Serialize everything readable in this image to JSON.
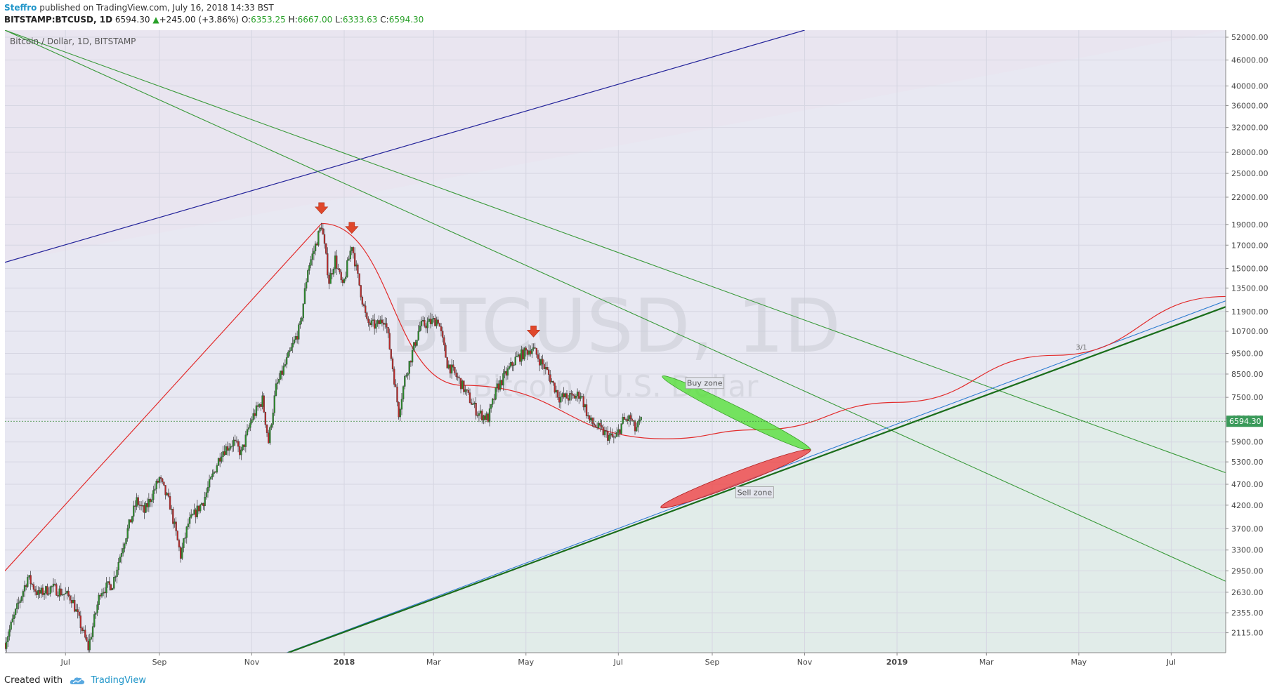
{
  "header": {
    "author": "Steffro",
    "published": "published on TradingView.com, July 16, 2018 14:33 BST",
    "symbol": "BITSTAMP:BTCUSD, 1D",
    "last": "6594.30",
    "change": "+245.00 (+3.86%)",
    "o_label": "O:",
    "o_value": "6353.25",
    "h_label": "H:",
    "h_value": "6667.00",
    "l_label": "L:",
    "l_value": "6333.63",
    "c_label": "C:",
    "c_value": "6594.30"
  },
  "footer": {
    "created": "Created with",
    "brand": "TradingView"
  },
  "chart_data": {
    "type": "candlestick",
    "legend": "Bitcoin / Dollar, 1D, BITSTAMP",
    "watermark_symbol": "BTCUSD, 1D",
    "watermark_name": "Bitcoin / U.S. Dollar",
    "y_scale": "log",
    "ylim": [
      1900,
      54000
    ],
    "xlim": [
      "2017-05-22",
      "2019-08-06"
    ],
    "y_ticks": [
      "52000.00",
      "46000.00",
      "40000.00",
      "36000.00",
      "32000.00",
      "28000.00",
      "25000.00",
      "22000.00",
      "19000.00",
      "17000.00",
      "15000.00",
      "13500.00",
      "11900.00",
      "10700.00",
      "9500.00",
      "8500.00",
      "7500.00",
      "6700.00",
      "5900.00",
      "5300.00",
      "4700.00",
      "4200.00",
      "3700.00",
      "3300.00",
      "2950.00",
      "2630.00",
      "2355.00",
      "2115.00"
    ],
    "x_ticks": [
      {
        "label": "Jul",
        "date": "2017-07-01"
      },
      {
        "label": "Sep",
        "date": "2017-09-01"
      },
      {
        "label": "Nov",
        "date": "2017-11-01"
      },
      {
        "label": "2018",
        "date": "2018-01-01"
      },
      {
        "label": "Mar",
        "date": "2018-03-01"
      },
      {
        "label": "May",
        "date": "2018-05-01"
      },
      {
        "label": "Jul",
        "date": "2018-07-01"
      },
      {
        "label": "Sep",
        "date": "2018-09-01"
      },
      {
        "label": "Nov",
        "date": "2018-11-01"
      },
      {
        "label": "2019",
        "date": "2019-01-01"
      },
      {
        "label": "Mar",
        "date": "2019-03-01"
      },
      {
        "label": "May",
        "date": "2019-05-01"
      },
      {
        "label": "Jul",
        "date": "2019-07-01"
      }
    ],
    "last_price": "6594.30",
    "price_path": [
      [
        "2017-05-22",
        2000
      ],
      [
        "2017-06-06",
        2850
      ],
      [
        "2017-06-13",
        2600
      ],
      [
        "2017-06-22",
        2700
      ],
      [
        "2017-07-05",
        2550
      ],
      [
        "2017-07-16",
        1950
      ],
      [
        "2017-07-24",
        2650
      ],
      [
        "2017-08-01",
        2750
      ],
      [
        "2017-08-08",
        3400
      ],
      [
        "2017-08-17",
        4300
      ],
      [
        "2017-08-22",
        4050
      ],
      [
        "2017-09-01",
        4850
      ],
      [
        "2017-09-08",
        4200
      ],
      [
        "2017-09-15",
        3200
      ],
      [
        "2017-09-20",
        3800
      ],
      [
        "2017-09-30",
        4300
      ],
      [
        "2017-10-12",
        5600
      ],
      [
        "2017-10-20",
        5900
      ],
      [
        "2017-10-25",
        5550
      ],
      [
        "2017-11-01",
        6700
      ],
      [
        "2017-11-08",
        7400
      ],
      [
        "2017-11-12",
        5900
      ],
      [
        "2017-11-17",
        7900
      ],
      [
        "2017-11-26",
        9500
      ],
      [
        "2017-12-03",
        11000
      ],
      [
        "2017-12-08",
        15000
      ],
      [
        "2017-12-12",
        16500
      ],
      [
        "2017-12-17",
        19000
      ],
      [
        "2017-12-22",
        14000
      ],
      [
        "2017-12-26",
        15800
      ],
      [
        "2017-12-31",
        13500
      ],
      [
        "2018-01-06",
        17100
      ],
      [
        "2018-01-10",
        14300
      ],
      [
        "2018-01-16",
        11200
      ],
      [
        "2018-01-22",
        11000
      ],
      [
        "2018-01-28",
        11500
      ],
      [
        "2018-02-02",
        8800
      ],
      [
        "2018-02-06",
        6900
      ],
      [
        "2018-02-10",
        8300
      ],
      [
        "2018-02-20",
        11000
      ],
      [
        "2018-03-04",
        11400
      ],
      [
        "2018-03-10",
        9000
      ],
      [
        "2018-03-18",
        8200
      ],
      [
        "2018-03-30",
        6900
      ],
      [
        "2018-04-06",
        6700
      ],
      [
        "2018-04-12",
        7900
      ],
      [
        "2018-04-24",
        9200
      ],
      [
        "2018-05-05",
        9800
      ],
      [
        "2018-05-15",
        8600
      ],
      [
        "2018-05-23",
        7500
      ],
      [
        "2018-06-01",
        7500
      ],
      [
        "2018-06-06",
        7650
      ],
      [
        "2018-06-12",
        6600
      ],
      [
        "2018-06-24",
        6100
      ],
      [
        "2018-06-29",
        6000
      ],
      [
        "2018-07-04",
        6600
      ],
      [
        "2018-07-09",
        6700
      ],
      [
        "2018-07-12",
        6300
      ],
      [
        "2018-07-16",
        6594.3
      ]
    ],
    "signals": [
      {
        "type": "sell-arrow",
        "date": "2017-12-17",
        "price": 19000
      },
      {
        "type": "sell-arrow",
        "date": "2018-01-06",
        "price": 17100
      },
      {
        "type": "sell-arrow",
        "date": "2018-05-06",
        "price": 9800
      }
    ],
    "annotations": [
      "Buy zone",
      "Sell zone",
      "3/1"
    ]
  }
}
